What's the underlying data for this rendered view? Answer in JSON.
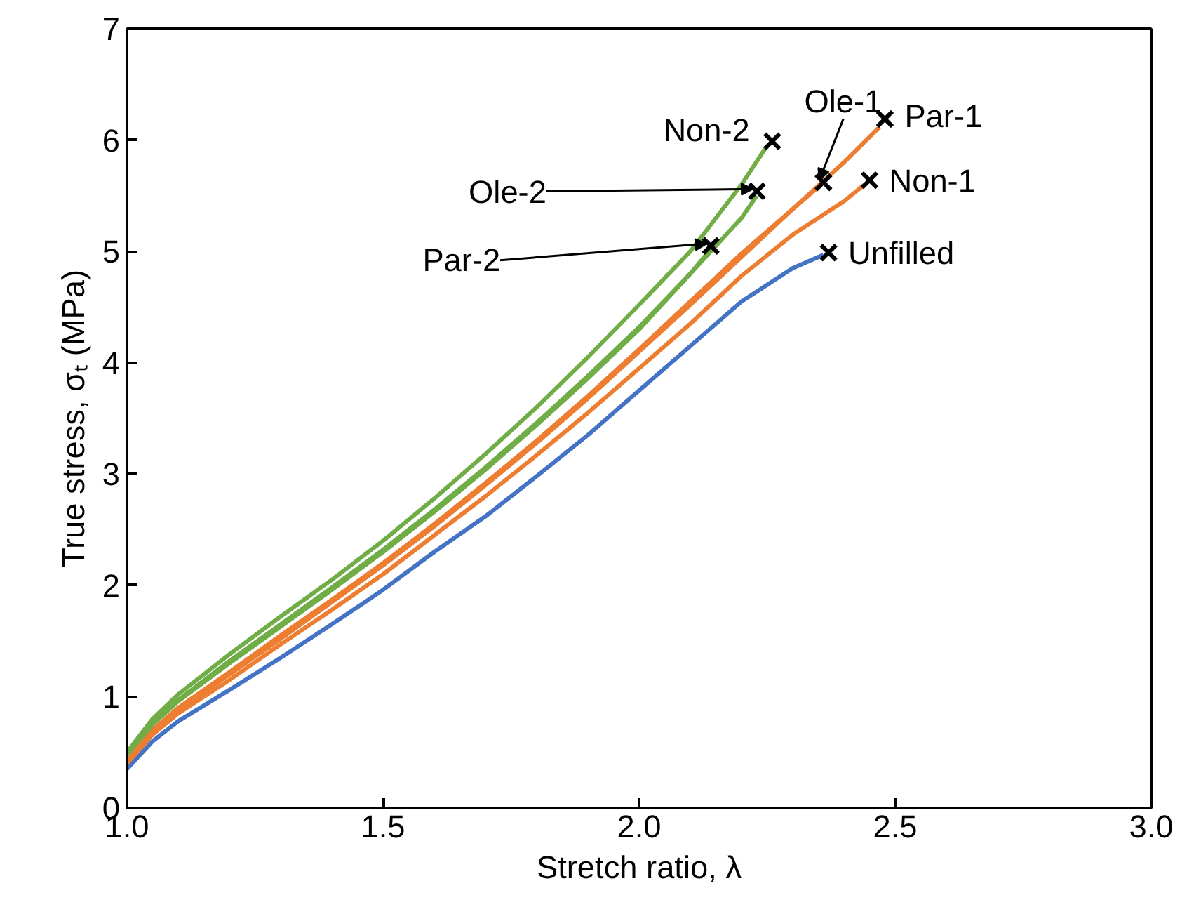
{
  "chart_data": {
    "type": "line",
    "xlabel": "Stretch ratio, λ",
    "ylabel": "True stress, σₜ (MPa)",
    "xlim": [
      1.0,
      3.0
    ],
    "xticks": [
      {
        "value": 1.0,
        "label": "1.0"
      },
      {
        "value": 1.5,
        "label": "1.5"
      },
      {
        "value": 2.0,
        "label": "2.0"
      },
      {
        "value": 2.5,
        "label": "2.5"
      },
      {
        "value": 3.0,
        "label": "3.0"
      }
    ],
    "ylim": [
      0,
      7
    ],
    "yticks": [
      0,
      1,
      2,
      3,
      4,
      5,
      6,
      7
    ],
    "grid": false,
    "marker": "none",
    "line_style": "solid",
    "series": [
      {
        "color": "#4472c4",
        "x": [
          1.0,
          1.05,
          1.1,
          1.2,
          1.3,
          1.4,
          1.5,
          1.6,
          1.7,
          1.8,
          1.9,
          2.0,
          2.1,
          2.2,
          2.3,
          2.36
        ],
        "values": [
          0.35,
          0.6,
          0.78,
          1.06,
          1.35,
          1.65,
          1.96,
          2.3,
          2.62,
          2.98,
          3.35,
          3.75,
          4.15,
          4.55,
          4.85,
          4.97
        ]
      },
      {
        "color": "#ed7d31",
        "x": [
          1.0,
          1.05,
          1.1,
          1.2,
          1.3,
          1.4,
          1.5,
          1.6,
          1.7,
          1.8,
          1.9,
          2.0,
          2.1,
          2.2,
          2.3,
          2.4,
          2.44
        ],
        "values": [
          0.4,
          0.66,
          0.85,
          1.15,
          1.47,
          1.78,
          2.1,
          2.45,
          2.8,
          3.17,
          3.55,
          3.95,
          4.35,
          4.78,
          5.15,
          5.45,
          5.6
        ]
      },
      {
        "color": "#ed7d31",
        "x": [
          1.0,
          1.05,
          1.1,
          1.2,
          1.3,
          1.4,
          1.5,
          1.6,
          1.7,
          1.8,
          1.9,
          2.0,
          2.1,
          2.2,
          2.3,
          2.35
        ],
        "values": [
          0.42,
          0.7,
          0.9,
          1.22,
          1.55,
          1.87,
          2.2,
          2.55,
          2.92,
          3.3,
          3.7,
          4.12,
          4.55,
          4.98,
          5.38,
          5.58
        ]
      },
      {
        "color": "#ed7d31",
        "x": [
          1.0,
          1.05,
          1.1,
          1.2,
          1.3,
          1.4,
          1.5,
          1.6,
          1.7,
          1.8,
          1.9,
          2.0,
          2.1,
          2.2,
          2.3,
          2.4,
          2.47
        ],
        "values": [
          0.42,
          0.68,
          0.88,
          1.2,
          1.52,
          1.85,
          2.18,
          2.53,
          2.9,
          3.28,
          3.68,
          4.1,
          4.52,
          4.95,
          5.38,
          5.8,
          6.12
        ]
      },
      {
        "color": "#70ad47",
        "x": [
          1.0,
          1.05,
          1.1,
          1.2,
          1.3,
          1.4,
          1.5,
          1.6,
          1.7,
          1.8,
          1.9,
          2.0,
          2.1,
          2.2,
          2.25
        ],
        "values": [
          0.5,
          0.8,
          1.02,
          1.38,
          1.72,
          2.05,
          2.4,
          2.78,
          3.18,
          3.6,
          4.05,
          4.52,
          5.0,
          5.6,
          5.95
        ]
      },
      {
        "color": "#70ad47",
        "x": [
          1.0,
          1.05,
          1.1,
          1.2,
          1.3,
          1.4,
          1.5,
          1.6,
          1.7,
          1.8,
          1.9,
          2.0,
          2.1,
          2.2,
          2.23
        ],
        "values": [
          0.48,
          0.76,
          0.97,
          1.32,
          1.65,
          1.98,
          2.32,
          2.68,
          3.06,
          3.46,
          3.88,
          4.32,
          4.8,
          5.3,
          5.5
        ]
      },
      {
        "color": "#70ad47",
        "x": [
          1.0,
          1.05,
          1.1,
          1.2,
          1.3,
          1.4,
          1.5,
          1.6,
          1.7,
          1.8,
          1.9,
          2.0,
          2.1,
          2.14
        ],
        "values": [
          0.48,
          0.75,
          0.96,
          1.3,
          1.63,
          1.96,
          2.3,
          2.66,
          3.04,
          3.44,
          3.86,
          4.3,
          4.8,
          5.02
        ]
      },
      {
        "type": "scatter",
        "marker": "cross",
        "color": "#000000",
        "x": [
          2.37,
          2.45,
          2.36,
          2.48,
          2.26,
          2.23,
          2.14
        ],
        "values": [
          4.99,
          5.64,
          5.62,
          6.19,
          5.99,
          5.54,
          5.05
        ]
      }
    ],
    "annotations": [
      {
        "text": "Unfilled",
        "x": 2.37,
        "y": 4.99
      },
      {
        "text": "Non-1",
        "x": 2.45,
        "y": 5.64
      },
      {
        "text": "Ole-1",
        "x": 2.36,
        "y": 5.62
      },
      {
        "text": "Par-1",
        "x": 2.48,
        "y": 6.19
      },
      {
        "text": "Non-2",
        "x": 2.26,
        "y": 5.99
      },
      {
        "text": "Ole-2",
        "x": 2.23,
        "y": 5.54
      },
      {
        "text": "Par-2",
        "x": 2.14,
        "y": 5.05
      }
    ]
  }
}
